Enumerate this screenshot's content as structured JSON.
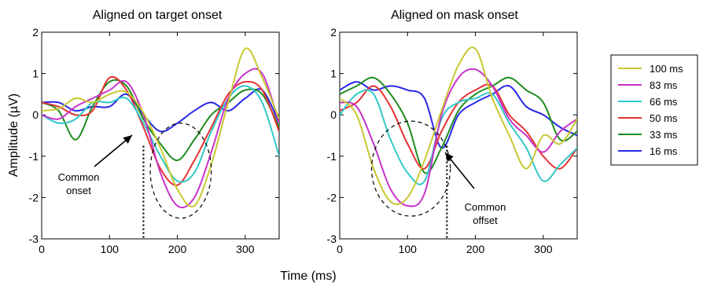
{
  "chart_data": [
    {
      "type": "line",
      "title": "Aligned on target onset",
      "ylabel": "Amplitude (µV)",
      "xlim": [
        0,
        350
      ],
      "ylim": [
        -3,
        2
      ],
      "xticks": [
        0,
        100,
        200,
        300
      ],
      "yticks": [
        2,
        1,
        0,
        -1,
        -2,
        -3
      ],
      "grid": false,
      "annotation": {
        "text_lines": [
          "Common",
          "onset"
        ],
        "marker_x": 150,
        "circle_center": [
          205,
          -1.35
        ],
        "circle_radius_x": 45,
        "circle_radius_y": 1.15
      },
      "series": [
        {
          "name": "100 ms",
          "color": "#c8c832",
          "x": [
            0,
            25,
            50,
            75,
            100,
            125,
            150,
            175,
            200,
            225,
            250,
            275,
            300,
            325,
            350
          ],
          "y": [
            0.1,
            0.15,
            0.4,
            0.3,
            0.5,
            0.55,
            0.05,
            -0.8,
            -1.8,
            -2.2,
            -1.2,
            0.3,
            1.6,
            0.9,
            -0.1
          ]
        },
        {
          "name": "83 ms",
          "color": "#c832c8",
          "x": [
            0,
            25,
            50,
            75,
            100,
            125,
            150,
            175,
            200,
            225,
            250,
            275,
            300,
            325,
            350
          ],
          "y": [
            0.0,
            -0.1,
            0.2,
            0.4,
            0.6,
            0.8,
            0.0,
            -1.4,
            -2.2,
            -2.0,
            -0.9,
            0.4,
            1.0,
            1.0,
            -0.2
          ]
        },
        {
          "name": "66 ms",
          "color": "#32c8c8",
          "x": [
            0,
            25,
            50,
            75,
            100,
            125,
            150,
            175,
            200,
            225,
            250,
            275,
            300,
            325,
            350
          ],
          "y": [
            0.0,
            -0.2,
            -0.1,
            0.3,
            0.3,
            0.4,
            -0.2,
            -1.0,
            -1.6,
            -1.4,
            -0.4,
            0.4,
            0.7,
            0.3,
            -1.0
          ]
        },
        {
          "name": "50 ms",
          "color": "#e63232",
          "x": [
            0,
            25,
            50,
            75,
            100,
            125,
            150,
            175,
            200,
            225,
            250,
            275,
            300,
            325,
            350
          ],
          "y": [
            0.3,
            0.2,
            0.0,
            0.1,
            0.9,
            0.6,
            -0.3,
            -1.3,
            -1.7,
            -1.1,
            -0.3,
            0.5,
            0.8,
            0.6,
            -0.4
          ]
        },
        {
          "name": "33 ms",
          "color": "#1e8c1e",
          "x": [
            0,
            25,
            50,
            75,
            100,
            125,
            150,
            175,
            200,
            225,
            250,
            275,
            300,
            325,
            350
          ],
          "y": [
            0.3,
            0.1,
            -0.6,
            0.2,
            0.8,
            0.7,
            -0.1,
            -0.7,
            -1.1,
            -0.6,
            0.0,
            0.3,
            0.6,
            0.5,
            -0.3
          ]
        },
        {
          "name": "16 ms",
          "color": "#2828e6",
          "x": [
            0,
            25,
            50,
            75,
            100,
            125,
            150,
            175,
            200,
            225,
            250,
            275,
            300,
            325,
            350
          ],
          "y": [
            0.3,
            0.3,
            0.1,
            0.2,
            0.2,
            0.5,
            0.0,
            -0.4,
            -0.2,
            0.1,
            0.3,
            0.1,
            0.4,
            0.6,
            -0.2
          ]
        }
      ]
    },
    {
      "type": "line",
      "title": "Aligned on mask onset",
      "ylabel": "",
      "xlim": [
        0,
        350
      ],
      "ylim": [
        -3,
        2
      ],
      "xticks": [
        0,
        100,
        200,
        300
      ],
      "yticks": [
        2,
        1,
        0,
        -1,
        -2,
        -3
      ],
      "grid": false,
      "annotation": {
        "text_lines": [
          "Common",
          "offset"
        ],
        "marker_x": 158,
        "circle_center": [
          105,
          -1.3
        ],
        "circle_radius_x": 58,
        "circle_radius_y": 1.15
      },
      "series": [
        {
          "name": "100 ms",
          "color": "#c8c832",
          "x": [
            0,
            25,
            50,
            75,
            100,
            125,
            150,
            175,
            200,
            225,
            250,
            275,
            300,
            325,
            350
          ],
          "y": [
            0.4,
            0.0,
            -1.3,
            -2.1,
            -2.0,
            -1.1,
            0.1,
            1.2,
            1.6,
            0.4,
            -0.5,
            -1.3,
            -0.5,
            -0.7,
            -0.1
          ]
        },
        {
          "name": "83 ms",
          "color": "#c832c8",
          "x": [
            0,
            25,
            50,
            75,
            100,
            125,
            150,
            175,
            200,
            225,
            250,
            275,
            300,
            325,
            350
          ],
          "y": [
            0.3,
            0.2,
            -0.7,
            -1.8,
            -2.2,
            -1.9,
            0.0,
            0.9,
            1.1,
            0.7,
            -0.1,
            -0.5,
            -0.9,
            -0.4,
            -0.1
          ]
        },
        {
          "name": "66 ms",
          "color": "#32c8c8",
          "x": [
            0,
            25,
            50,
            75,
            100,
            125,
            150,
            175,
            200,
            225,
            250,
            275,
            300,
            325,
            350
          ],
          "y": [
            0.0,
            0.5,
            0.5,
            -0.6,
            -1.4,
            -1.6,
            -0.1,
            0.3,
            0.4,
            0.5,
            -0.2,
            -0.8,
            -1.6,
            -1.2,
            -0.8
          ]
        },
        {
          "name": "50 ms",
          "color": "#e63232",
          "x": [
            0,
            25,
            50,
            75,
            100,
            125,
            150,
            175,
            200,
            225,
            250,
            275,
            300,
            325,
            350
          ],
          "y": [
            0.1,
            0.3,
            0.7,
            0.2,
            -0.7,
            -1.3,
            -0.4,
            0.3,
            0.6,
            0.7,
            0.0,
            -0.4,
            -1.0,
            -1.3,
            -0.8
          ]
        },
        {
          "name": "33 ms",
          "color": "#1e8c1e",
          "x": [
            0,
            25,
            50,
            75,
            100,
            125,
            150,
            175,
            200,
            225,
            250,
            275,
            300,
            325,
            350
          ],
          "y": [
            0.5,
            0.7,
            0.9,
            0.5,
            -0.2,
            -1.4,
            -0.8,
            0.1,
            0.5,
            0.7,
            0.9,
            0.6,
            0.3,
            -0.6,
            -0.4
          ]
        },
        {
          "name": "16 ms",
          "color": "#2828e6",
          "x": [
            0,
            25,
            50,
            75,
            100,
            125,
            150,
            175,
            200,
            225,
            250,
            275,
            300,
            325,
            350
          ],
          "y": [
            0.6,
            0.8,
            0.6,
            0.7,
            0.6,
            0.4,
            -0.8,
            0.0,
            0.3,
            0.5,
            0.7,
            0.2,
            0.0,
            -0.3,
            -0.5
          ]
        }
      ]
    }
  ],
  "shared_xlabel": "Time (ms)",
  "legend": [
    "100 ms",
    "83 ms",
    "66 ms",
    "50 ms",
    "33 ms",
    "16 ms"
  ]
}
